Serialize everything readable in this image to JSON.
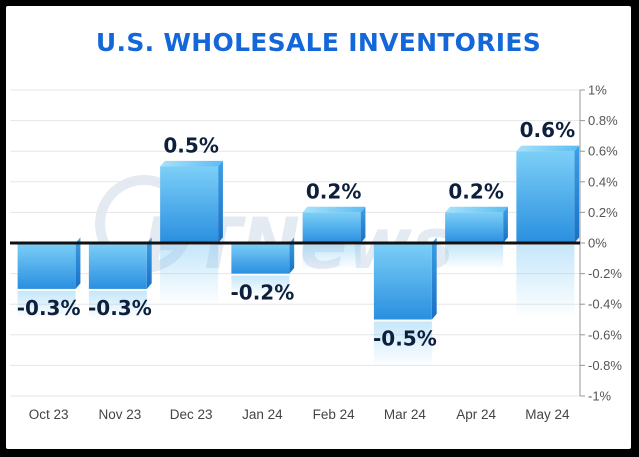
{
  "title": "U.S. WHOLESALE INVENTORIES",
  "watermark": "PTNews",
  "colors": {
    "title": "#1467d9",
    "bar_top": "#6ec8f5",
    "bar_bottom": "#2f95e3",
    "zero_line": "#111111",
    "frame": "#000000"
  },
  "chart_data": {
    "type": "bar",
    "title": "U.S. WHOLESALE INVENTORIES",
    "xlabel": "",
    "ylabel": "",
    "categories": [
      "Oct 23",
      "Nov 23",
      "Dec 23",
      "Jan 24",
      "Feb 24",
      "Mar 24",
      "Apr 24",
      "May 24"
    ],
    "values": [
      -0.3,
      -0.3,
      0.5,
      -0.2,
      0.2,
      -0.5,
      0.2,
      0.6
    ],
    "data_labels": [
      "-0.3%",
      "-0.3%",
      "0.5%",
      "-0.2%",
      "0.2%",
      "-0.5%",
      "0.2%",
      "0.6%"
    ],
    "ylim": [
      -1,
      1
    ],
    "yticks": [
      1,
      0.8,
      0.6,
      0.4,
      0.2,
      0,
      -0.2,
      -0.4,
      -0.6,
      -0.8,
      -1
    ],
    "ytick_labels": [
      "1%",
      "0.8%",
      "0.6%",
      "0.4%",
      "0.2%",
      "0%",
      "-0.2%",
      "-0.4%",
      "-0.6%",
      "-0.8%",
      "-1%"
    ],
    "grid": true,
    "axis_side": "right"
  }
}
